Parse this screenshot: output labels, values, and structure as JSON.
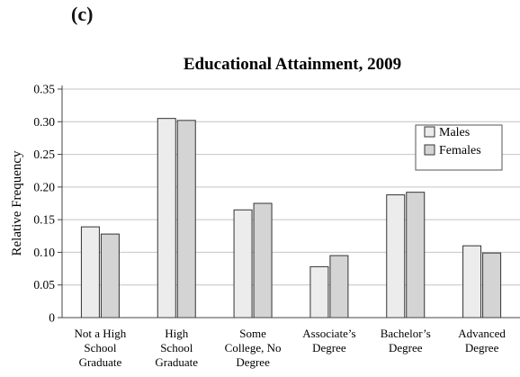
{
  "panel_label": "(c)",
  "chart_data": {
    "type": "bar",
    "title": "Educational Attainment, 2009",
    "xlabel": "",
    "ylabel": "Relative Frequency",
    "ylim": [
      0,
      0.35
    ],
    "yticks": [
      "0",
      "0.05",
      "0.10",
      "0.15",
      "0.20",
      "0.25",
      "0.30",
      "0.35"
    ],
    "grid": true,
    "legend_position": "top-right",
    "categories": [
      [
        "Not a High",
        "School",
        "Graduate"
      ],
      [
        "High",
        "School",
        "Graduate"
      ],
      [
        "Some",
        "College, No",
        "Degree"
      ],
      [
        "Associate’s",
        "Degree"
      ],
      [
        "Bachelor’s",
        "Degree"
      ],
      [
        "Advanced",
        "Degree"
      ]
    ],
    "series": [
      {
        "name": "Males",
        "color": "#ececec",
        "values": [
          0.139,
          0.305,
          0.165,
          0.078,
          0.188,
          0.11
        ]
      },
      {
        "name": "Females",
        "color": "#d4d4d4",
        "values": [
          0.128,
          0.302,
          0.175,
          0.095,
          0.192,
          0.099
        ]
      }
    ]
  }
}
